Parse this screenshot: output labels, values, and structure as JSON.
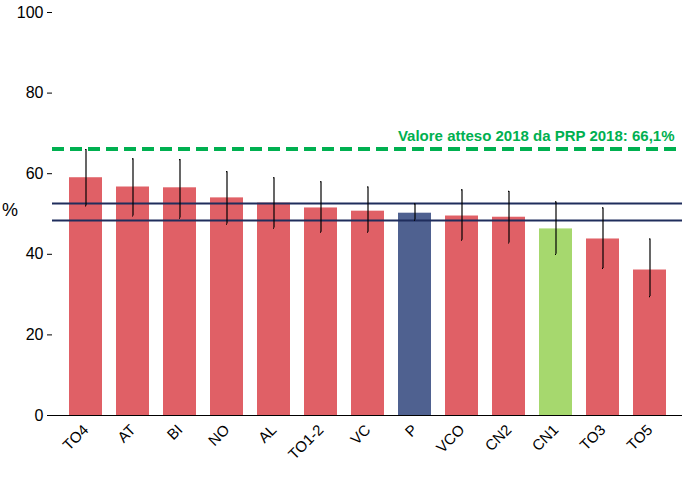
{
  "chart_data": {
    "type": "bar",
    "y_label": "%",
    "categories": [
      "TO4",
      "AT",
      "BI",
      "NO",
      "AL",
      "TO1-2",
      "VC",
      "P",
      "VCO",
      "CN2",
      "CN1",
      "TO3",
      "TO5"
    ],
    "values": [
      59.0,
      56.7,
      56.5,
      54.0,
      52.7,
      51.5,
      50.7,
      50.2,
      49.5,
      49.2,
      46.3,
      43.8,
      36.1
    ],
    "error_low": [
      52.0,
      49.5,
      49.0,
      47.5,
      46.5,
      45.5,
      45.5,
      48.5,
      43.5,
      42.8,
      40.0,
      36.5,
      29.5
    ],
    "error_high": [
      66.0,
      63.7,
      63.5,
      60.5,
      59.0,
      58.0,
      56.7,
      52.5,
      56.0,
      55.6,
      53.0,
      51.5,
      43.8
    ],
    "colors": [
      "#e06066",
      "#e06066",
      "#e06066",
      "#e06066",
      "#e06066",
      "#e06066",
      "#e06066",
      "#4f6190",
      "#e06066",
      "#e06066",
      "#a6d86e",
      "#e06066",
      "#e06066"
    ],
    "reference_lines": [
      48.4,
      52.6
    ],
    "target": {
      "value": 66.1,
      "label": "Valore atteso 2018 da PRP 2018: 66,1%"
    },
    "ylim": [
      0,
      100
    ],
    "yticks": [
      0,
      20,
      40,
      60,
      80,
      100
    ],
    "grid": false
  }
}
